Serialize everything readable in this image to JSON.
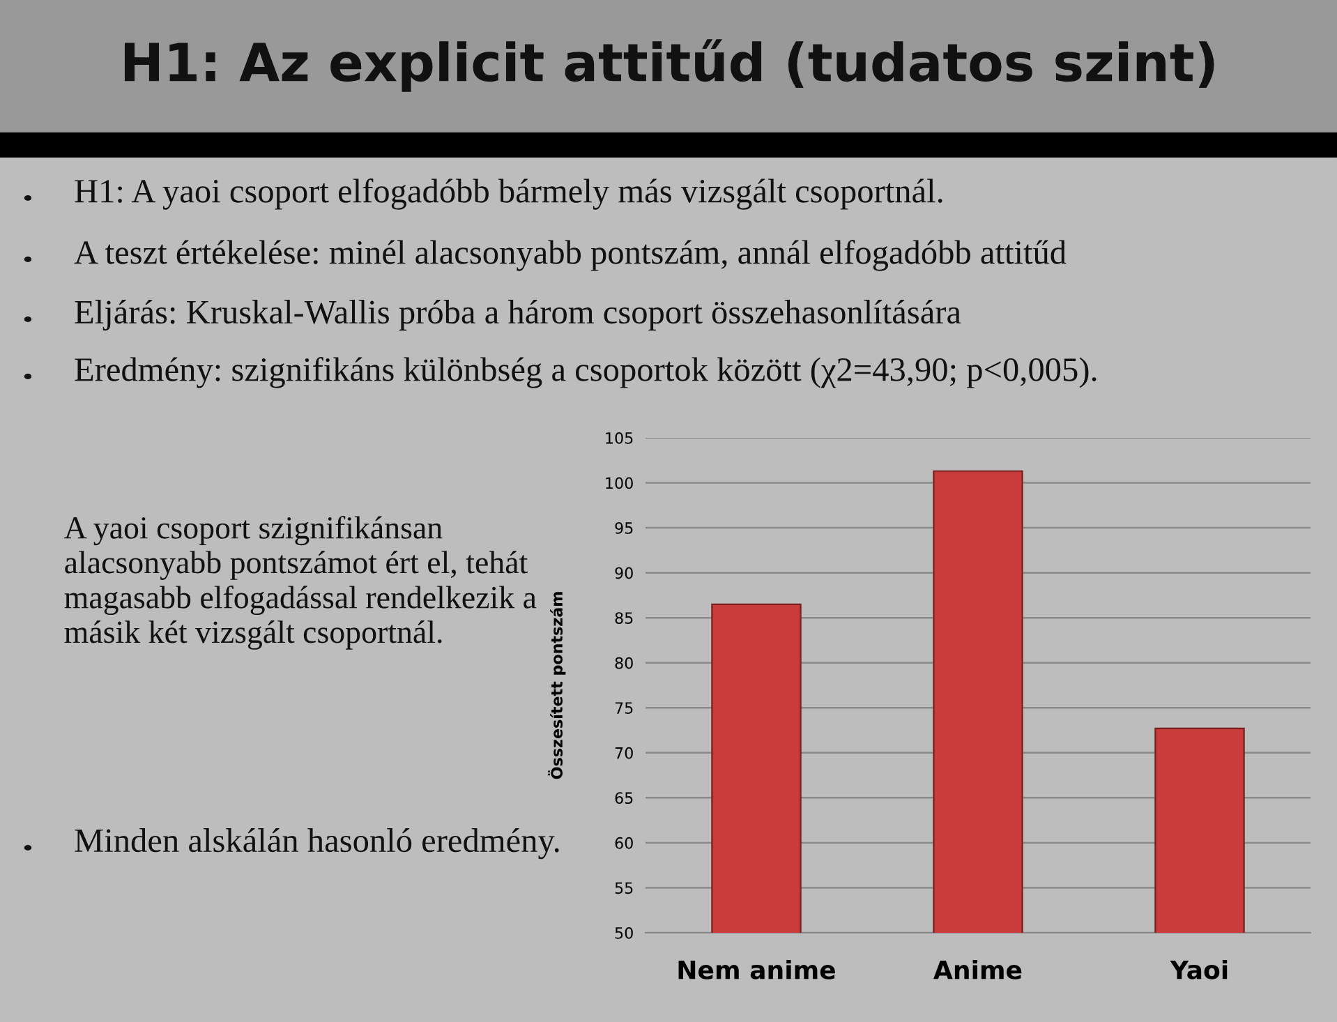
{
  "chart_data": {
    "type": "bar",
    "title": "H1: Az explicit attitűd (tudatos szint)",
    "ylabel": "Összesített pontszám",
    "categories": [
      "Nem anime",
      "Anime",
      "Yaoi"
    ],
    "values": [
      86.5,
      101.3,
      72.7
    ],
    "color": "#c83c3c",
    "ylim": [
      50,
      105
    ],
    "yticks": [
      50,
      55,
      60,
      65,
      70,
      75,
      80,
      85,
      90,
      95,
      100,
      105
    ],
    "grid": "y",
    "annotations": [
      "H1: A yaoi csoport elfogadóbb bármely más vizsgált csoportnál.",
      "A teszt értékelése: minél alacsonyabb pontszám, annál elfogadóbb attitűd",
      "Eljárás: Kruskal-Wallis próba a három csoport összehasonlítására",
      "Eredmény: szignifikáns különbség a csoportok között (χ2=43,90; p<0,005).",
      "A yaoi csoport szignifikánsan alacsonyabb pontszámot ért el, tehát magasabb elfogadással rendelkezik a másik két vizsgált csoportnál.",
      "Minden alskálán hasonló eredmény."
    ]
  }
}
